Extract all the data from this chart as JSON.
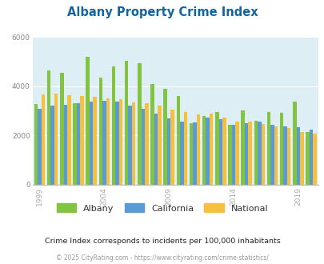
{
  "title": "Albany Property Crime Index",
  "years": [
    1999,
    2000,
    2001,
    2002,
    2003,
    2004,
    2005,
    2006,
    2007,
    2008,
    2009,
    2010,
    2011,
    2012,
    2013,
    2014,
    2015,
    2016,
    2017,
    2018,
    2019,
    2020
  ],
  "albany": [
    3280,
    4650,
    4550,
    3300,
    5200,
    4350,
    4800,
    5020,
    4920,
    4080,
    3880,
    3600,
    2500,
    2800,
    2950,
    2430,
    3020,
    2600,
    2950,
    2920,
    3380,
    2150
  ],
  "california": [
    3100,
    3200,
    3250,
    3300,
    3380,
    3400,
    3370,
    3200,
    3080,
    2880,
    2680,
    2570,
    2520,
    2720,
    2650,
    2420,
    2500,
    2550,
    2450,
    2380,
    2340,
    2230
  ],
  "national": [
    3680,
    3700,
    3650,
    3600,
    3570,
    3520,
    3470,
    3350,
    3300,
    3200,
    3050,
    2950,
    2850,
    2900,
    2720,
    2580,
    2550,
    2460,
    2380,
    2310,
    2130,
    2080
  ],
  "albany_color": "#82c341",
  "california_color": "#5b9bd5",
  "national_color": "#f5c040",
  "bg_color": "#ddeef4",
  "title_color": "#1464a0",
  "subtitle": "Crime Index corresponds to incidents per 100,000 inhabitants",
  "footer": "© 2025 CityRating.com - https://www.cityrating.com/crime-statistics/",
  "ylim": [
    0,
    6000
  ],
  "yticks": [
    0,
    2000,
    4000,
    6000
  ],
  "xtick_years": [
    1999,
    2004,
    2009,
    2014,
    2019
  ]
}
